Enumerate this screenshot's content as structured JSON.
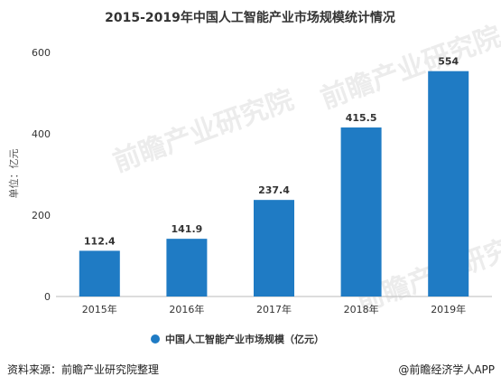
{
  "chart_data": {
    "type": "bar",
    "title": "2015-2019年中国人工智能产业市场规模统计情况",
    "ylabel": "单位：亿元",
    "xlabel": "",
    "categories": [
      "2015年",
      "2016年",
      "2017年",
      "2018年",
      "2019年"
    ],
    "series": [
      {
        "name": "中国人工智能产业市场规模（亿元）",
        "values": [
          112.4,
          141.9,
          237.4,
          415.5,
          554
        ]
      }
    ],
    "data_labels": [
      "112.4",
      "141.9",
      "237.4",
      "415.5",
      "554"
    ],
    "ylim": [
      0,
      600
    ],
    "yticks": [
      "0",
      "200",
      "400",
      "600"
    ],
    "grid": false,
    "legend_position": "bottom",
    "bar_color": "#1f7bc4"
  },
  "footer": {
    "source": "资料来源：前瞻产业研究院整理",
    "brand": "@前瞻经济学人APP"
  },
  "watermark": {
    "text": "前瞻产业研究院"
  }
}
